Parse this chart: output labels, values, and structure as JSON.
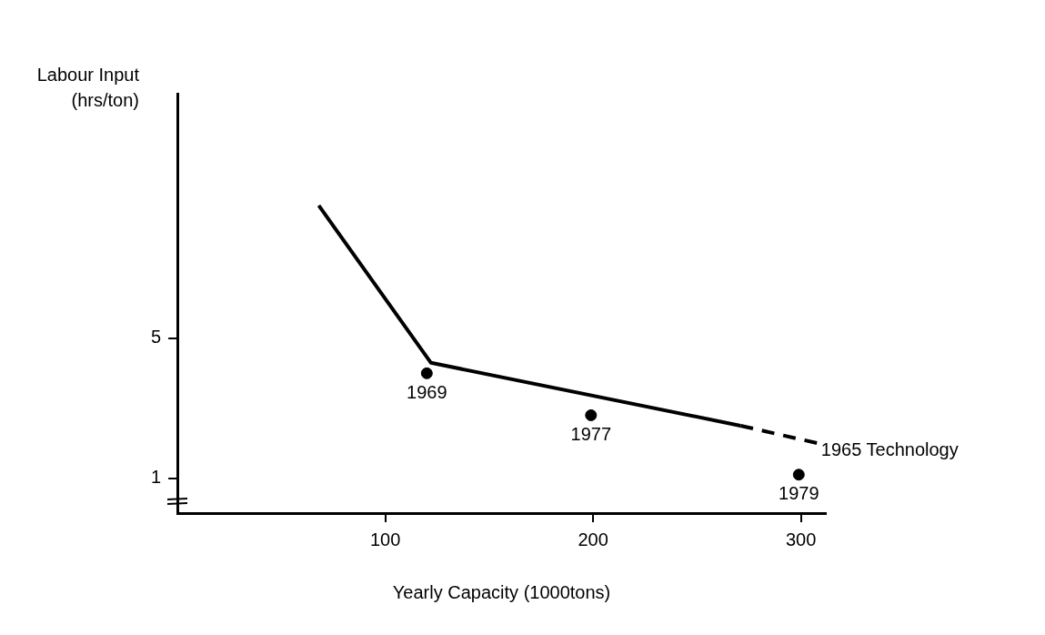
{
  "chart_data": {
    "type": "line",
    "xlabel": "Yearly Capacity (1000tons)",
    "ylabel": "Labour Input (hrs/ton)",
    "series": [
      {
        "type": "line",
        "color": "#000000",
        "x": [
          68,
          122,
          271
        ],
        "values": [
          8.8,
          4.3,
          2.5
        ],
        "line_style": "solid"
      },
      {
        "type": "line",
        "color": "#000000",
        "x": [
          271,
          308
        ],
        "values": [
          2.5,
          2.0
        ],
        "line_style": "dashed"
      },
      {
        "type": "scatter",
        "color": "#000000",
        "x": [
          120,
          199,
          299
        ],
        "values": [
          4.0,
          2.8,
          1.1
        ],
        "marker": "circle"
      }
    ],
    "annotations": [
      {
        "text": "1965 Technology",
        "x": 308,
        "y": 2.0
      },
      {
        "text": "1969",
        "x": 120,
        "y": 4.0
      },
      {
        "text": "1977",
        "x": 199,
        "y": 2.8
      },
      {
        "text": "1979",
        "x": 299,
        "y": 1.1
      }
    ],
    "xlim": [
      0,
      312
    ],
    "ylim": [
      0,
      12
    ],
    "xticks": [
      100,
      200,
      300
    ],
    "yticks": [
      1,
      5
    ],
    "grid": false,
    "legend": false
  }
}
